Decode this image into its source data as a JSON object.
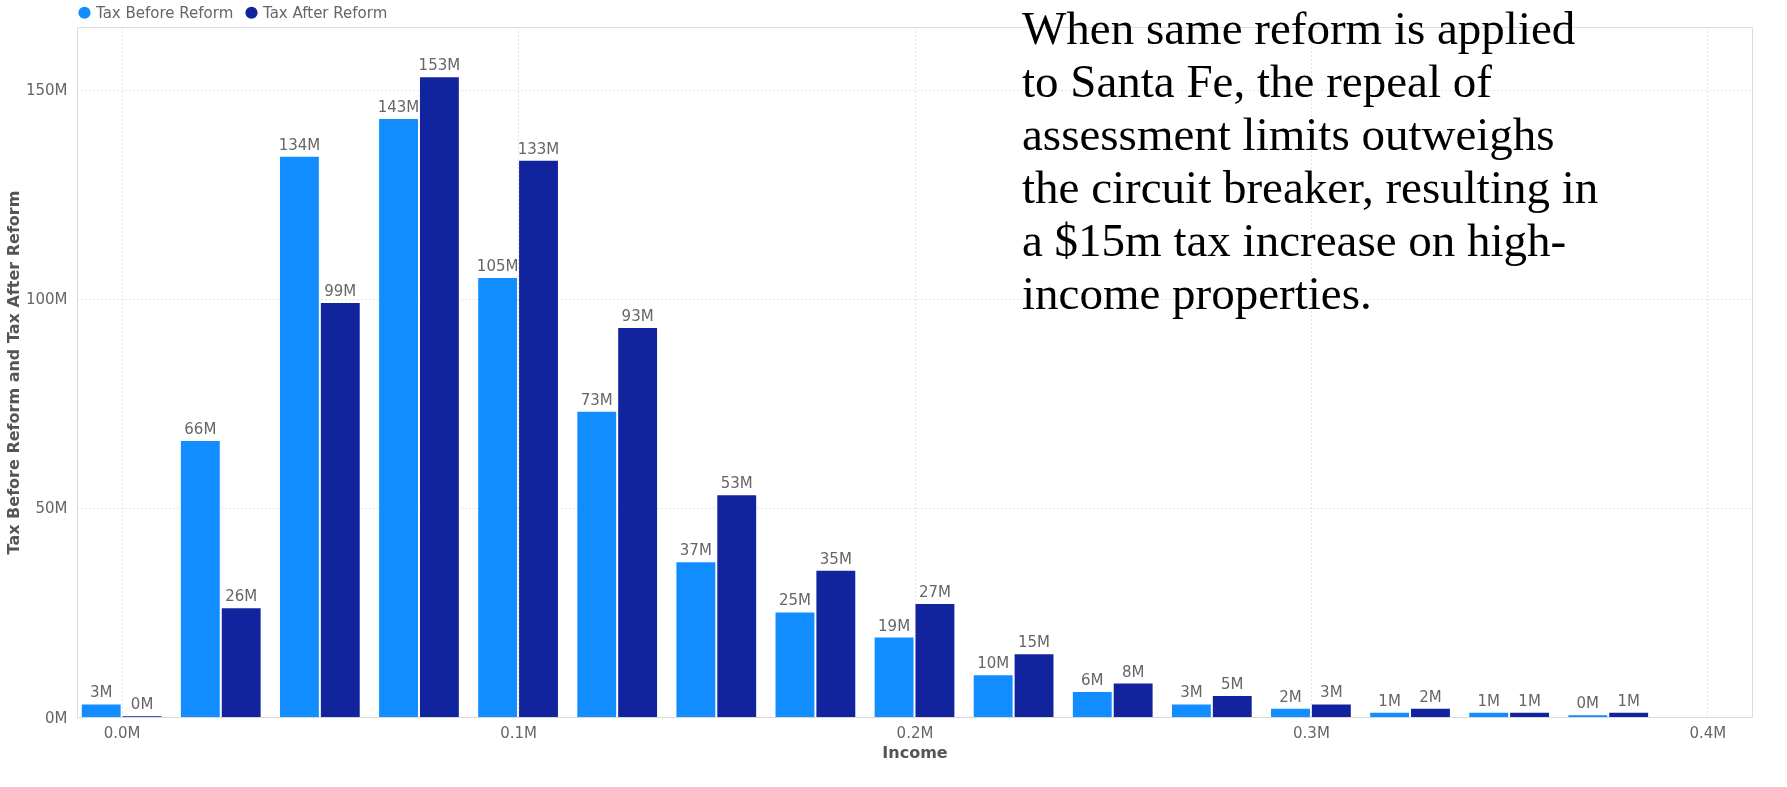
{
  "chart_data": {
    "type": "bar",
    "xlabel": "Income",
    "ylabel": "Tax Before Reform and Tax After Reform",
    "x": [
      0,
      0.025,
      0.05,
      0.075,
      0.1,
      0.125,
      0.15,
      0.175,
      0.2,
      0.225,
      0.25,
      0.275,
      0.3,
      0.325,
      0.35,
      0.375
    ],
    "series": [
      {
        "name": "Tax Before Reform",
        "color": "#118dff",
        "values": [
          3,
          66,
          134,
          143,
          105,
          73,
          37,
          25,
          19,
          10,
          6,
          3,
          2,
          1,
          1,
          0.4
        ],
        "value_labels": [
          "3M",
          "66M",
          "134M",
          "143M",
          "105M",
          "73M",
          "37M",
          "25M",
          "19M",
          "10M",
          "6M",
          "3M",
          "2M",
          "1M",
          "1M",
          "0M"
        ]
      },
      {
        "name": "Tax After Reform",
        "color": "#12239e",
        "values": [
          0.2,
          26,
          99,
          153,
          133,
          93,
          53,
          35,
          27,
          15,
          8,
          5,
          3,
          2,
          1,
          1
        ],
        "value_labels": [
          "0M",
          "26M",
          "99M",
          "153M",
          "133M",
          "93M",
          "53M",
          "35M",
          "27M",
          "15M",
          "8M",
          "5M",
          "3M",
          "2M",
          "1M",
          "1M"
        ]
      }
    ],
    "xlim": [
      -0.01,
      0.41
    ],
    "xticks": [
      {
        "value": 0,
        "label": "0.0M"
      },
      {
        "value": 0.1,
        "label": "0.1M"
      },
      {
        "value": 0.2,
        "label": "0.2M"
      },
      {
        "value": 0.3,
        "label": "0.3M"
      },
      {
        "value": 0.4,
        "label": "0.4M"
      }
    ],
    "ylim": [
      0,
      165
    ],
    "yticks": [
      {
        "value": 0,
        "label": "0M"
      },
      {
        "value": 50,
        "label": "50M"
      },
      {
        "value": 100,
        "label": "100M"
      },
      {
        "value": 150,
        "label": "150M"
      }
    ],
    "grid": true,
    "legend": "top left",
    "annotations": [
      "When same reform is applied\nto Santa Fe, the repeal of\nassessment limits outweighs\nthe circuit breaker, resulting in\na $15m tax increase on high-\nincome properties."
    ]
  }
}
